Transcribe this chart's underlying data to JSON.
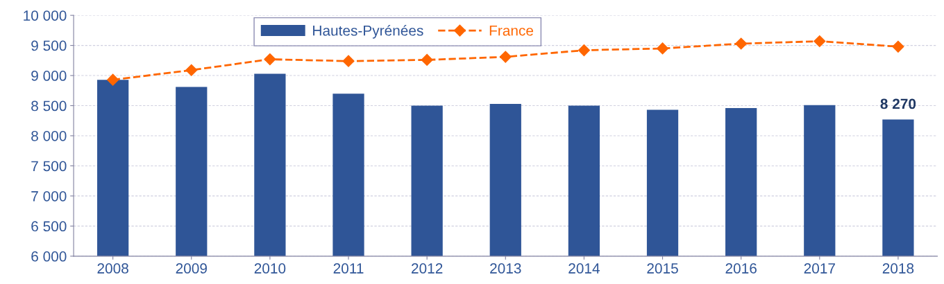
{
  "chart_data": {
    "type": "bar",
    "categories": [
      "2008",
      "2009",
      "2010",
      "2011",
      "2012",
      "2013",
      "2014",
      "2015",
      "2016",
      "2017",
      "2018"
    ],
    "series": [
      {
        "name": "Hautes-Pyrénées",
        "color": "#2f5597",
        "values": [
          8930,
          8810,
          9030,
          8700,
          8500,
          8530,
          8500,
          8430,
          8460,
          8510,
          8270
        ],
        "value_labels": [
          null,
          null,
          null,
          null,
          null,
          null,
          null,
          null,
          null,
          null,
          "8 270"
        ]
      },
      {
        "name": "France",
        "type": "line",
        "color": "#ff6600",
        "marker": "diamond",
        "line_style": "dashed",
        "values": [
          8930,
          9090,
          9270,
          9240,
          9260,
          9310,
          9420,
          9450,
          9530,
          9570,
          9480
        ]
      }
    ],
    "ylim": [
      6000,
      10000
    ],
    "yticks": [
      {
        "value": 6000,
        "label": "6 000"
      },
      {
        "value": 6500,
        "label": "6 500"
      },
      {
        "value": 7000,
        "label": "7 000"
      },
      {
        "value": 7500,
        "label": "7 500"
      },
      {
        "value": 8000,
        "label": "8 000"
      },
      {
        "value": 8500,
        "label": "8 500"
      },
      {
        "value": 9000,
        "label": "9 000"
      },
      {
        "value": 9500,
        "label": "9 500"
      },
      {
        "value": 10000,
        "label": "10 000"
      }
    ],
    "grid": "y",
    "legend": "top"
  }
}
